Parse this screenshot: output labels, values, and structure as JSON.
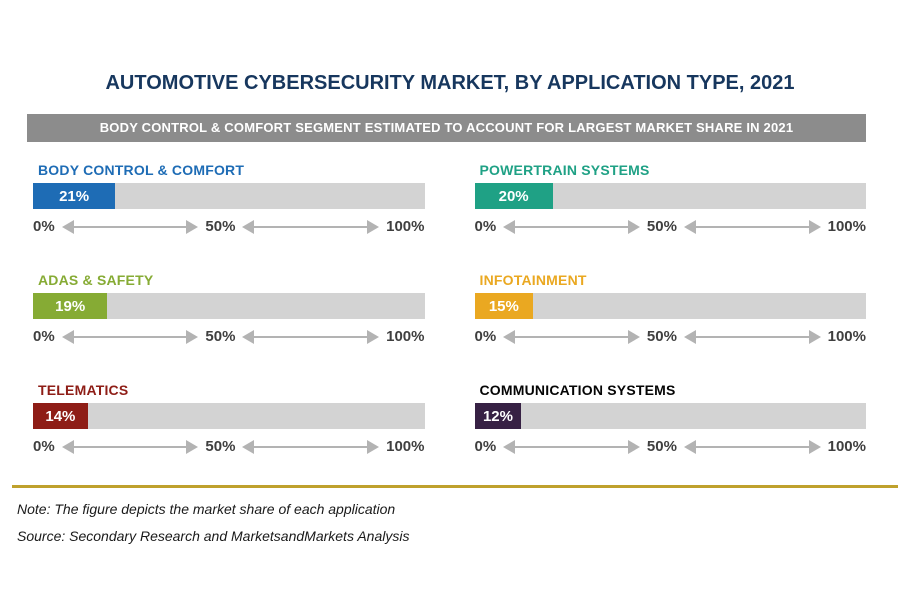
{
  "title": "AUTOMOTIVE CYBERSECURITY MARKET, BY APPLICATION TYPE, 2021",
  "banner": "BODY CONTROL & COMFORT SEGMENT ESTIMATED TO ACCOUNT FOR LARGEST MARKET SHARE IN 2021",
  "axis_ticks": [
    "0%",
    "50%",
    "100%"
  ],
  "segments": [
    {
      "label": "BODY CONTROL & COMFORT",
      "value": 21,
      "value_label": "21%",
      "color": "#1E6CB5",
      "label_color": "#1E6CB5"
    },
    {
      "label": "POWERTRAIN SYSTEMS",
      "value": 20,
      "value_label": "20%",
      "color": "#1FA185",
      "label_color": "#1FA185"
    },
    {
      "label": "ADAS & SAFETY",
      "value": 19,
      "value_label": "19%",
      "color": "#86AB34",
      "label_color": "#86AB34"
    },
    {
      "label": "INFOTAINMENT",
      "value": 15,
      "value_label": "15%",
      "color": "#EAA821",
      "label_color": "#EAA821"
    },
    {
      "label": "TELEMATICS",
      "value": 14,
      "value_label": "14%",
      "color": "#8E1D16",
      "label_color": "#8E1D16"
    },
    {
      "label": "COMMUNICATION SYSTEMS",
      "value": 12,
      "value_label": "12%",
      "color": "#372144",
      "label_color": "#050505"
    }
  ],
  "note": "Note: The figure depicts the market share of each application",
  "source": "Source: Secondary Research and MarketsandMarkets Analysis",
  "colors": {
    "title": "#17375E",
    "banner_bg": "#8C8C8C",
    "track": "#D3D3D3",
    "arrow": "#B3B3B3",
    "axis_text": "#3F3F3F",
    "divider": "#BFA12D"
  },
  "chart_data": {
    "type": "bar",
    "orientation": "horizontal",
    "title": "AUTOMOTIVE CYBERSECURITY MARKET, BY APPLICATION TYPE, 2021",
    "subtitle": "BODY CONTROL & COMFORT SEGMENT ESTIMATED TO ACCOUNT FOR LARGEST MARKET SHARE IN 2021",
    "categories": [
      "BODY CONTROL & COMFORT",
      "POWERTRAIN SYSTEMS",
      "ADAS & SAFETY",
      "INFOTAINMENT",
      "TELEMATICS",
      "COMMUNICATION SYSTEMS"
    ],
    "values": [
      21,
      20,
      19,
      15,
      14,
      12
    ],
    "unit": "%",
    "xlim": [
      0,
      100
    ],
    "x_ticks": [
      "0%",
      "50%",
      "100%"
    ],
    "bar_colors": [
      "#1E6CB5",
      "#1FA185",
      "#86AB34",
      "#EAA821",
      "#8E1D16",
      "#372144"
    ],
    "grid": false,
    "legend": "none",
    "layout": "two-column grid of six bars, each with its own 0-100% axis with double-headed arrows between ticks"
  }
}
